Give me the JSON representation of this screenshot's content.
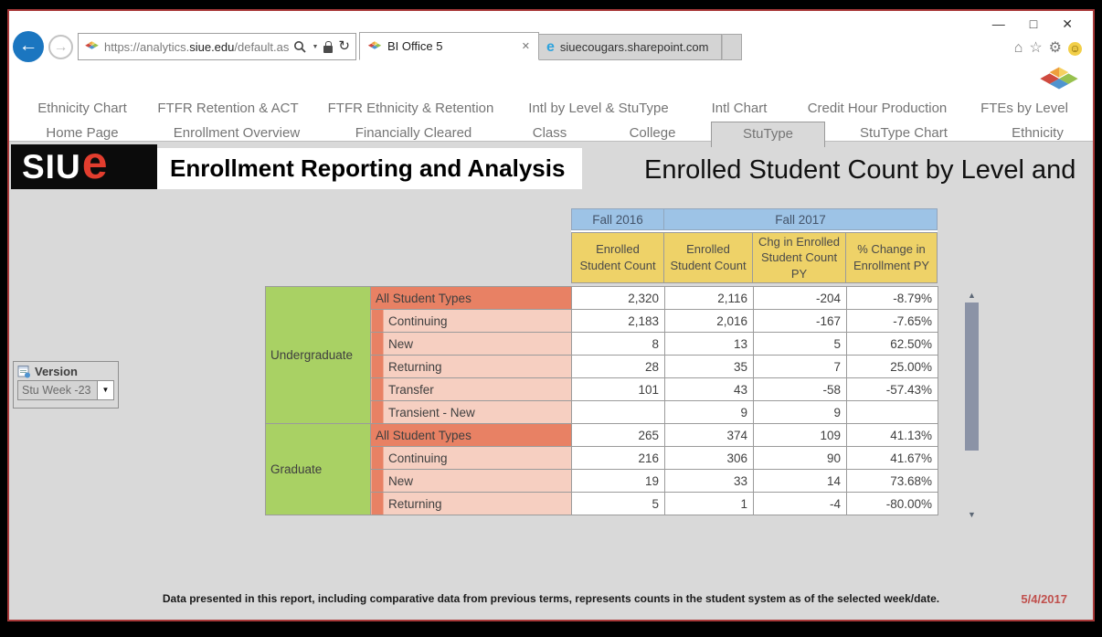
{
  "browser": {
    "url_prefix": "https://analytics.",
    "url_domain": "siue.edu",
    "url_path": "/default.aspx",
    "tabs": [
      {
        "label": "BI Office 5",
        "active": true
      },
      {
        "label": "siuecougars.sharepoint.com",
        "active": false
      }
    ]
  },
  "icons": {
    "back": "←",
    "forward": "→",
    "refresh": "↻",
    "caret": "▼",
    "home": "⌂",
    "star": "☆",
    "gear": "⚙",
    "smiley": "☺",
    "minimize": "—",
    "maximize": "□",
    "close": "✕",
    "scroll_up": "▲",
    "scroll_down": "▼"
  },
  "nav": {
    "row1": [
      "Ethnicity Chart",
      "FTFR Retention & ACT",
      "FTFR Ethnicity & Retention",
      "Intl by Level & StuType",
      "Intl Chart",
      "Credit Hour Production",
      "FTEs by Level"
    ],
    "row2": [
      "Home Page",
      "Enrollment Overview",
      "Financially Cleared",
      "Class",
      "College",
      "StuType",
      "StuType Chart",
      "Ethnicity"
    ],
    "selected": "StuType"
  },
  "header": {
    "logo_siu": "SIU",
    "logo_e": "e",
    "app_title": "Enrollment Reporting and Analysis",
    "report_title": "Enrolled Student Count by Level and"
  },
  "version_panel": {
    "label": "Version",
    "value": "Stu Week -23"
  },
  "table": {
    "col_groups": [
      {
        "label": "Fall 2016",
        "span": 1
      },
      {
        "label": "Fall 2017",
        "span": 3
      }
    ],
    "columns": [
      "Enrolled Student Count",
      "Enrolled Student Count",
      "Chg in Enrolled Student Count PY",
      "% Change in Enrollment PY"
    ],
    "sections": [
      {
        "level": "Undergraduate",
        "rows": [
          {
            "type": "All Student Types",
            "total": true,
            "values": [
              "2,320",
              "2,116",
              "-204",
              "-8.79%"
            ]
          },
          {
            "type": "Continuing",
            "total": false,
            "values": [
              "2,183",
              "2,016",
              "-167",
              "-7.65%"
            ]
          },
          {
            "type": "New",
            "total": false,
            "values": [
              "8",
              "13",
              "5",
              "62.50%"
            ]
          },
          {
            "type": "Returning",
            "total": false,
            "values": [
              "28",
              "35",
              "7",
              "25.00%"
            ]
          },
          {
            "type": "Transfer",
            "total": false,
            "values": [
              "101",
              "43",
              "-58",
              "-57.43%"
            ]
          },
          {
            "type": "Transient - New",
            "total": false,
            "values": [
              "",
              "9",
              "9",
              ""
            ]
          }
        ]
      },
      {
        "level": "Graduate",
        "rows": [
          {
            "type": "All Student Types",
            "total": true,
            "values": [
              "265",
              "374",
              "109",
              "41.13%"
            ]
          },
          {
            "type": "Continuing",
            "total": false,
            "values": [
              "216",
              "306",
              "90",
              "41.67%"
            ]
          },
          {
            "type": "New",
            "total": false,
            "values": [
              "19",
              "33",
              "14",
              "73.68%"
            ]
          },
          {
            "type": "Returning",
            "total": false,
            "values": [
              "5",
              "1",
              "-4",
              "-80.00%"
            ]
          }
        ]
      }
    ]
  },
  "footer": {
    "disclaimer": "Data presented in this report, including comparative data from previous terms, represents counts in the student system as of the selected week/date.",
    "date": "5/4/2017"
  },
  "colors": {
    "window_border": "#a83838",
    "content_bg": "#d9d9d9",
    "header_blue": "#9dc3e6",
    "header_yellow": "#eed268",
    "level_green": "#a9d164",
    "type_coral": "#e88164",
    "type_pink": "#f6cfc1",
    "date_red": "#c0504d",
    "logo_red": "#e23d2e",
    "scroll_thumb": "#8b93a6",
    "back_button_blue": "#1b76c0"
  }
}
